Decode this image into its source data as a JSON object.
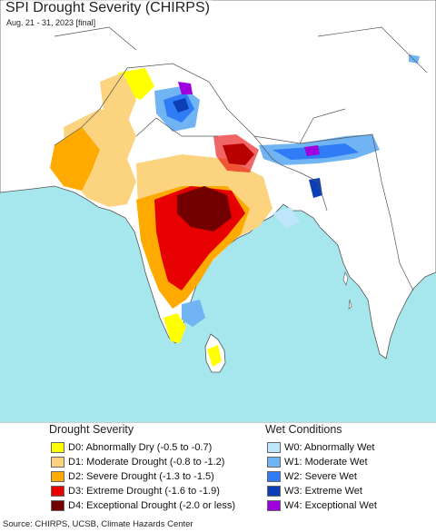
{
  "title": "SPI Drought Severity (CHIRPS)",
  "subtitle": "Aug. 21 - 31, 2023 [final]",
  "legend": {
    "drought_heading": "Drought Severity",
    "wet_heading": "Wet Conditions",
    "drought_items": [
      {
        "label": "D0: Abnormally Dry (-0.5 to -0.7)",
        "color": "#ffff00"
      },
      {
        "label": "D1: Moderate Drought (-0.8 to -1.2)",
        "color": "#fcd37f"
      },
      {
        "label": "D2: Severe Drought (-1.3 to -1.5)",
        "color": "#ffaa00"
      },
      {
        "label": "D3: Extreme Drought (-1.6 to -1.9)",
        "color": "#e60000"
      },
      {
        "label": "D4: Exceptional Drought (-2.0 or less)",
        "color": "#730000"
      }
    ],
    "wet_items": [
      {
        "label": "W0: Abnormally Wet",
        "color": "#bde6fb"
      },
      {
        "label": "W1: Moderate Wet",
        "color": "#70b4f4"
      },
      {
        "label": "W2: Severe Wet",
        "color": "#2f7cf6"
      },
      {
        "label": "W3: Extreme Wet",
        "color": "#0c3fb5"
      },
      {
        "label": "W4: Exceptional Wet",
        "color": "#a000e0"
      }
    ]
  },
  "source": "Source: CHIRPS, UCSB, Climate Hazards Center",
  "colors": {
    "ocean": "#a6e7ed",
    "land": "#ffffff",
    "border": "#555555"
  }
}
